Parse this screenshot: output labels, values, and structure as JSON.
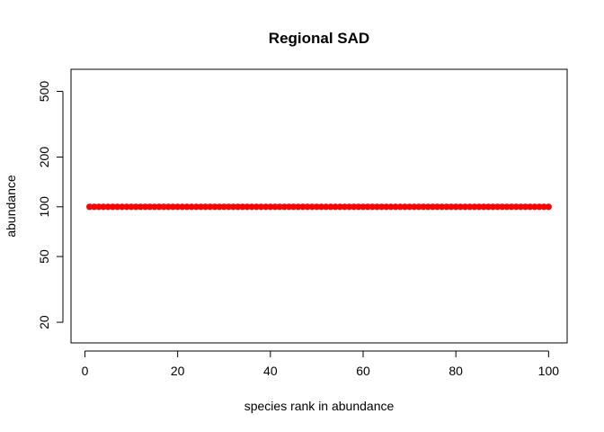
{
  "chart_data": {
    "type": "scatter",
    "title": "Regional SAD",
    "xlabel": "species rank in abundance",
    "ylabel": "abundance",
    "x_scale": "linear",
    "y_scale": "log",
    "xlim": [
      -3,
      104
    ],
    "ylim": [
      15,
      680
    ],
    "x_ticks": [
      0,
      20,
      40,
      60,
      80,
      100
    ],
    "y_ticks": [
      20,
      50,
      100,
      200,
      500
    ],
    "grid": false,
    "legend": "none",
    "point_color": "#ff0000",
    "x": [
      1,
      2,
      3,
      4,
      5,
      6,
      7,
      8,
      9,
      10,
      11,
      12,
      13,
      14,
      15,
      16,
      17,
      18,
      19,
      20,
      21,
      22,
      23,
      24,
      25,
      26,
      27,
      28,
      29,
      30,
      31,
      32,
      33,
      34,
      35,
      36,
      37,
      38,
      39,
      40,
      41,
      42,
      43,
      44,
      45,
      46,
      47,
      48,
      49,
      50,
      51,
      52,
      53,
      54,
      55,
      56,
      57,
      58,
      59,
      60,
      61,
      62,
      63,
      64,
      65,
      66,
      67,
      68,
      69,
      70,
      71,
      72,
      73,
      74,
      75,
      76,
      77,
      78,
      79,
      80,
      81,
      82,
      83,
      84,
      85,
      86,
      87,
      88,
      89,
      90,
      91,
      92,
      93,
      94,
      95,
      96,
      97,
      98,
      99,
      100
    ],
    "y": [
      100,
      100,
      100,
      100,
      100,
      100,
      100,
      100,
      100,
      100,
      100,
      100,
      100,
      100,
      100,
      100,
      100,
      100,
      100,
      100,
      100,
      100,
      100,
      100,
      100,
      100,
      100,
      100,
      100,
      100,
      100,
      100,
      100,
      100,
      100,
      100,
      100,
      100,
      100,
      100,
      100,
      100,
      100,
      100,
      100,
      100,
      100,
      100,
      100,
      100,
      100,
      100,
      100,
      100,
      100,
      100,
      100,
      100,
      100,
      100,
      100,
      100,
      100,
      100,
      100,
      100,
      100,
      100,
      100,
      100,
      100,
      100,
      100,
      100,
      100,
      100,
      100,
      100,
      100,
      100,
      100,
      100,
      100,
      100,
      100,
      100,
      100,
      100,
      100,
      100,
      100,
      100,
      100,
      100,
      100,
      100,
      100,
      100,
      100,
      100
    ]
  }
}
